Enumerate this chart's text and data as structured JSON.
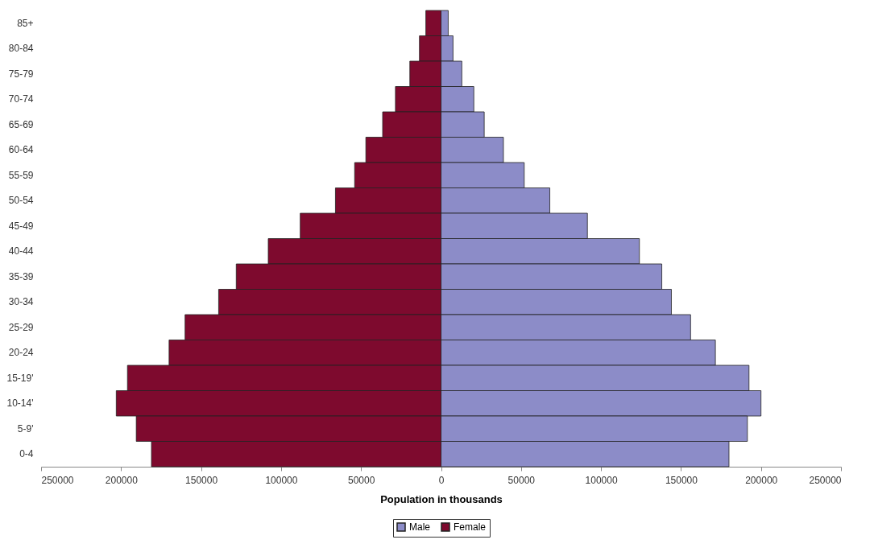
{
  "chart_data": {
    "type": "bar",
    "orientation": "horizontal",
    "xlabel": "Population in thousands",
    "categories": [
      "85+",
      "80-84",
      "75-79",
      "70-74",
      "65-69",
      "60-64",
      "55-59",
      "50-54",
      "45-49",
      "40-44",
      "35-39",
      "30-34",
      "25-29",
      "20-24",
      "15-19'",
      "10-14'",
      "5-9'",
      "0-4"
    ],
    "series": [
      {
        "name": "Male",
        "color": "#8c8cc8",
        "values": [
          4500,
          7500,
          13000,
          20500,
          27000,
          39000,
          52000,
          68000,
          91500,
          124000,
          138000,
          144000,
          156000,
          171500,
          192500,
          200000,
          191500,
          180000
        ]
      },
      {
        "name": "Female",
        "color": "#7e0a2e",
        "values": [
          -9500,
          -13500,
          -19500,
          -28500,
          -36500,
          -47000,
          -54000,
          -66000,
          -88000,
          -108000,
          -128000,
          -139000,
          -160000,
          -170000,
          -196000,
          -203000,
          -190500,
          -181000
        ]
      }
    ],
    "xlim": [
      -250000,
      250000
    ],
    "xticks": [
      {
        "value": -250000,
        "label": "250000"
      },
      {
        "value": -200000,
        "label": "200000"
      },
      {
        "value": -150000,
        "label": "150000"
      },
      {
        "value": -100000,
        "label": "100000"
      },
      {
        "value": -50000,
        "label": "50000"
      },
      0,
      50000,
      100000,
      150000,
      200000,
      250000
    ],
    "grid": false,
    "legend": "bottom",
    "stacked": true
  }
}
